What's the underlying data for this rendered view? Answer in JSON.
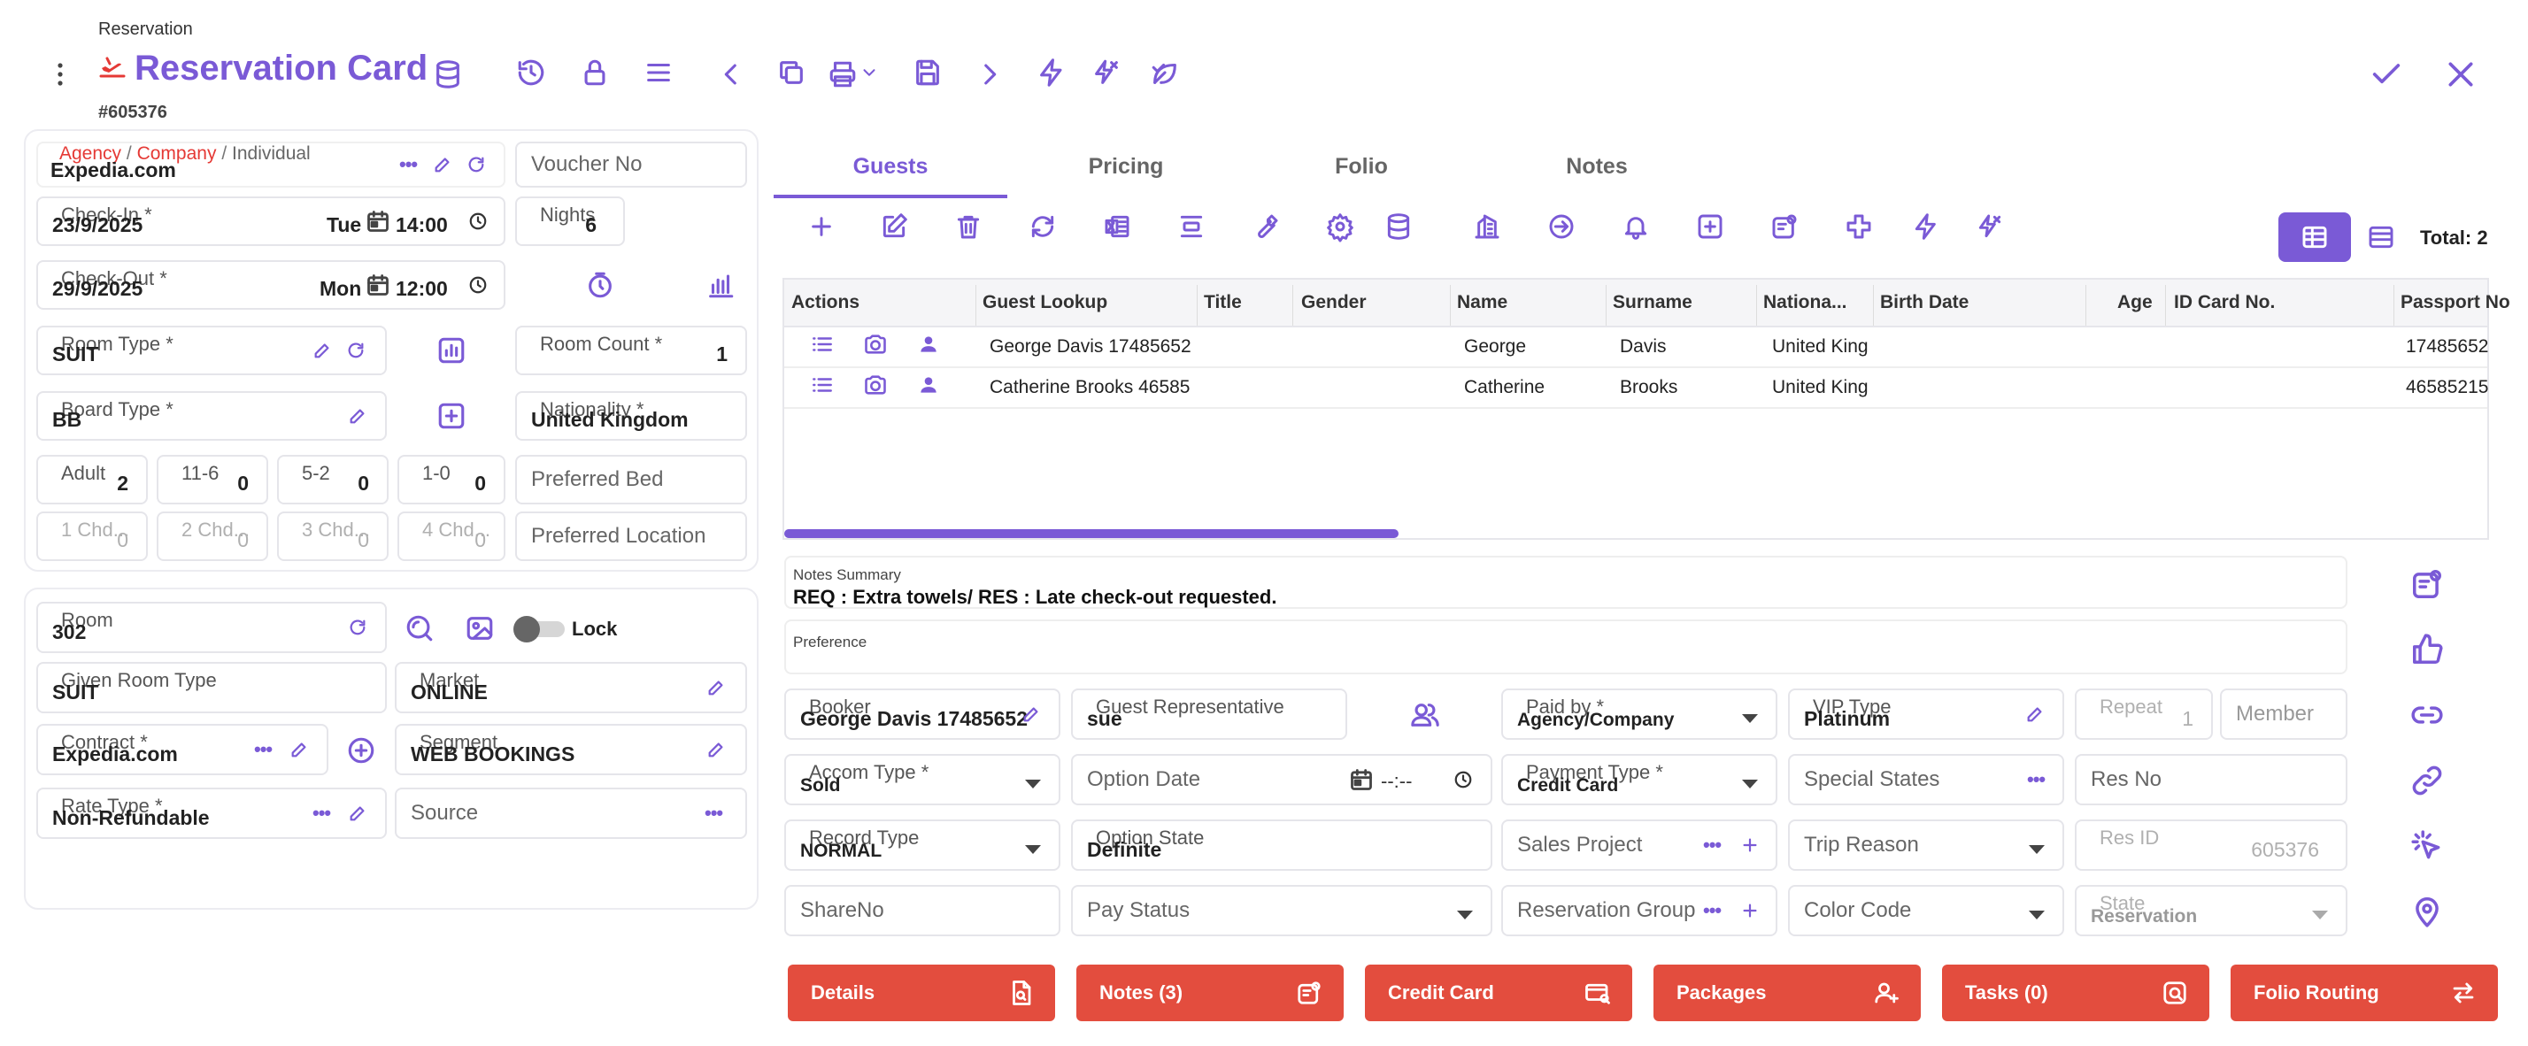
{
  "header": {
    "breadcrumb": "Reservation",
    "title": "Reservation Card",
    "record_id": "#605376"
  },
  "left_top": {
    "agency_label_agency": "Agency",
    "agency_label_company": "Company",
    "agency_label_individual": "Individual",
    "slash": "/",
    "agency_value": "Expedia.com",
    "voucher_placeholder": "Voucher No",
    "checkin_label": "Check-In *",
    "checkin_date": "23/9/2025",
    "checkin_day": "Tue",
    "checkin_time": "14:00",
    "nights_label": "Nights",
    "nights_value": "6",
    "checkout_label": "Check-Out *",
    "checkout_date": "29/9/2025",
    "checkout_day": "Mon",
    "checkout_time": "12:00",
    "room_type_label": "Room Type *",
    "room_type_value": "SUIT",
    "room_count_label": "Room Count *",
    "room_count_value": "1",
    "board_type_label": "Board Type *",
    "board_type_value": "BB",
    "nationality_label": "Nationality *",
    "nationality_value": "United Kingdom",
    "adult_label": "Adult",
    "adult_value": "2",
    "c116_label": "11-6",
    "c116_value": "0",
    "c52_label": "5-2",
    "c52_value": "0",
    "c10_label": "1-0",
    "c10_value": "0",
    "preferred_bed": "Preferred Bed",
    "chd1_label": "1 Chd...",
    "chd1_value": "0",
    "chd2_label": "2 Chd...",
    "chd2_value": "0",
    "chd3_label": "3 Chd...",
    "chd3_value": "0",
    "chd4_label": "4 Chd...",
    "chd4_value": "0",
    "preferred_location": "Preferred Location"
  },
  "left_bottom": {
    "room_label": "Room",
    "room_value": "302",
    "lock_label": "Lock",
    "given_room_type_label": "Given Room Type",
    "given_room_type_value": "SUIT",
    "market_label": "Market",
    "market_value": "ONLINE",
    "contract_label": "Contract *",
    "contract_value": "Expedia.com",
    "segment_label": "Segment",
    "segment_value": "WEB BOOKINGS",
    "rate_type_label": "Rate Type *",
    "rate_type_value": "Non-Refundable",
    "source_placeholder": "Source"
  },
  "tabs": [
    "Guests",
    "Pricing",
    "Folio",
    "Notes"
  ],
  "total_label": "Total: 2",
  "table": {
    "headers": [
      "Actions",
      "Guest Lookup",
      "Title",
      "Gender",
      "Name",
      "Surname",
      "Nationa...",
      "Birth Date",
      "Age",
      "ID Card No.",
      "Passport No"
    ],
    "rows": [
      {
        "lookup": "George Davis 17485652",
        "name": "George",
        "surname": "Davis",
        "nationality": "United King",
        "passport": "17485652"
      },
      {
        "lookup": "Catherine Brooks 46585",
        "name": "Catherine",
        "surname": "Brooks",
        "nationality": "United King",
        "passport": "46585215"
      }
    ]
  },
  "notes": {
    "summary_label": "Notes Summary",
    "summary_value": "REQ : Extra towels/ RES : Late check-out requested.",
    "preference_label": "Preference"
  },
  "form": {
    "booker_label": "Booker",
    "booker_value": "George Davis 17485652",
    "guest_rep_label": "Guest Representative",
    "guest_rep_value": "sue",
    "paid_by_label": "Paid by *",
    "paid_by_value": "Agency/Company",
    "vip_type_label": "VIP Type",
    "vip_type_value": "Platinum",
    "repeat_label": "Repeat",
    "repeat_value": "1",
    "member_placeholder": "Member",
    "accom_type_label": "Accom Type *",
    "accom_type_value": "Sold",
    "option_date_placeholder": "Option Date",
    "option_time": "--:--",
    "payment_type_label": "Payment Type *",
    "payment_type_value": "Credit Card",
    "special_states_placeholder": "Special States",
    "res_no_placeholder": "Res No",
    "record_type_label": "Record Type",
    "record_type_value": "NORMAL",
    "option_state_label": "Option State",
    "option_state_value": "Definite",
    "sales_project_placeholder": "Sales Project",
    "trip_reason_placeholder": "Trip Reason",
    "res_id_label": "Res ID",
    "res_id_value": "605376",
    "share_no_placeholder": "ShareNo",
    "pay_status_placeholder": "Pay Status",
    "reservation_group_placeholder": "Reservation Group",
    "color_code_placeholder": "Color Code",
    "state_label": "State",
    "state_value": "Reservation"
  },
  "buttons": [
    "Details",
    "Notes (3)",
    "Credit Card",
    "Packages",
    "Tasks (0)",
    "Folio Routing"
  ],
  "colors": {
    "accent": "#7a5ad6",
    "danger": "#e34d3e",
    "agency_red": "#e53935"
  }
}
